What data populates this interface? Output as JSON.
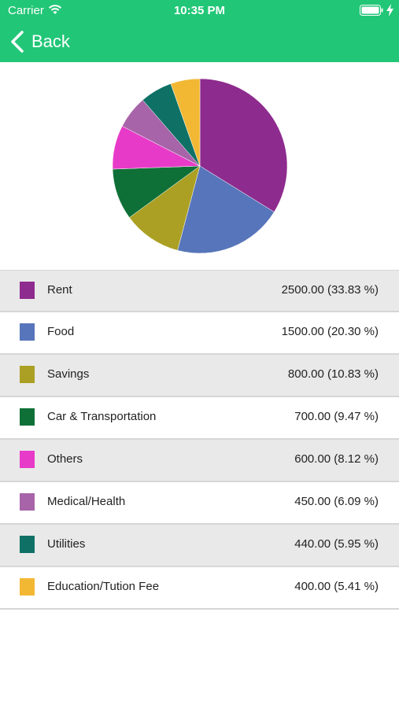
{
  "status_bar": {
    "carrier": "Carrier",
    "time": "10:35 PM",
    "icons": [
      "wifi-icon",
      "battery-icon",
      "charging-bolt-icon"
    ]
  },
  "nav": {
    "back_label": "Back",
    "back_icon": "chevron-left-icon",
    "bar_color": "#22c677"
  },
  "chart_data": {
    "type": "pie",
    "slices": [
      {
        "label": "Rent",
        "value": 2500.0,
        "percent": 33.83,
        "color": "#8e2b8e"
      },
      {
        "label": "Food",
        "value": 1500.0,
        "percent": 20.3,
        "color": "#5775ba"
      },
      {
        "label": "Savings",
        "value": 800.0,
        "percent": 10.83,
        "color": "#aba023"
      },
      {
        "label": "Car & Transportation",
        "value": 700.0,
        "percent": 9.47,
        "color": "#0f7037"
      },
      {
        "label": "Others",
        "value": 600.0,
        "percent": 8.12,
        "color": "#e83ac8"
      },
      {
        "label": "Medical/Health",
        "value": 450.0,
        "percent": 6.09,
        "color": "#a764a8"
      },
      {
        "label": "Utilities",
        "value": 440.0,
        "percent": 5.95,
        "color": "#0f7166"
      },
      {
        "label": "Education/Tution Fee",
        "value": 400.0,
        "percent": 5.41,
        "color": "#f2b834"
      }
    ]
  },
  "legend": {
    "rows": [
      {
        "label": "Rent",
        "value_text": "2500.00 (33.83 %)",
        "color": "#8e2b8e"
      },
      {
        "label": "Food",
        "value_text": "1500.00 (20.30 %)",
        "color": "#5775ba"
      },
      {
        "label": "Savings",
        "value_text": "800.00 (10.83 %)",
        "color": "#aba023"
      },
      {
        "label": "Car & Transportation",
        "value_text": "700.00 (9.47 %)",
        "color": "#0f7037"
      },
      {
        "label": "Others",
        "value_text": "600.00 (8.12 %)",
        "color": "#e83ac8"
      },
      {
        "label": "Medical/Health",
        "value_text": "450.00 (6.09 %)",
        "color": "#a764a8"
      },
      {
        "label": "Utilities",
        "value_text": "440.00 (5.95 %)",
        "color": "#0f7166"
      },
      {
        "label": "Education/Tution Fee",
        "value_text": "400.00 (5.41 %)",
        "color": "#f2b834"
      }
    ]
  }
}
